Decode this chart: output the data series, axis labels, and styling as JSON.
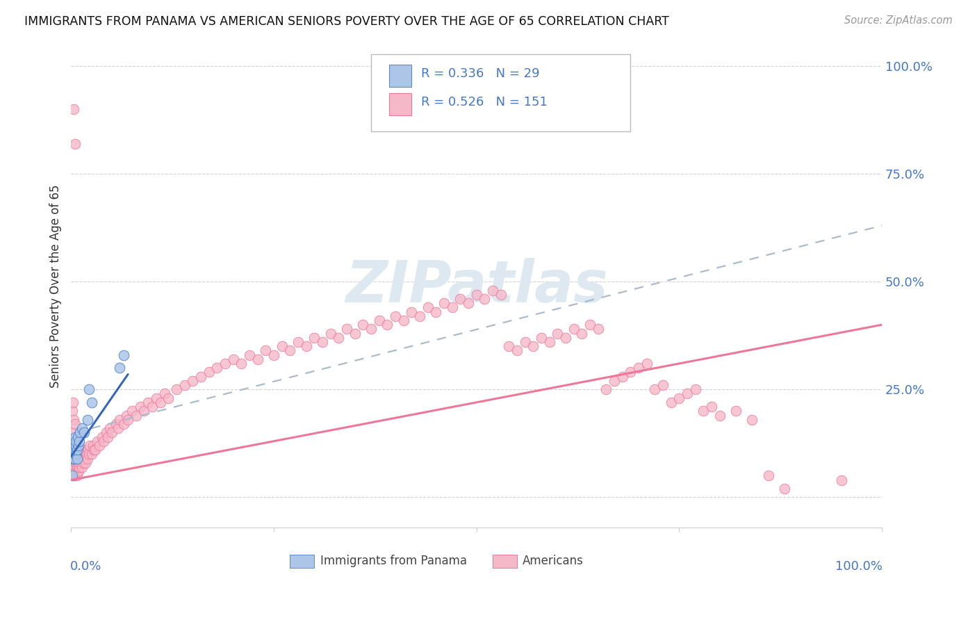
{
  "title": "IMMIGRANTS FROM PANAMA VS AMERICAN SENIORS POVERTY OVER THE AGE OF 65 CORRELATION CHART",
  "source": "Source: ZipAtlas.com",
  "ylabel": "Seniors Poverty Over the Age of 65",
  "legend_label1": "Immigrants from Panama",
  "legend_label2": "Americans",
  "legend_R1": "R = 0.336",
  "legend_N1": "N = 29",
  "legend_R2": "R = 0.526",
  "legend_N2": "N = 151",
  "color_blue_fill": "#adc6e8",
  "color_blue_edge": "#5588cc",
  "color_blue_line": "#3366bb",
  "color_blue_dash": "#aabbcc",
  "color_pink_fill": "#f5b8c8",
  "color_pink_edge": "#ee7799",
  "color_pink_line": "#ee7799",
  "color_axis_label": "#4477cc",
  "color_grid": "#cccccc",
  "watermark_color": "#dde8f0",
  "blue_x": [
    0.001,
    0.002,
    0.002,
    0.003,
    0.003,
    0.003,
    0.004,
    0.004,
    0.004,
    0.005,
    0.005,
    0.005,
    0.005,
    0.006,
    0.006,
    0.006,
    0.007,
    0.007,
    0.008,
    0.009,
    0.01,
    0.011,
    0.013,
    0.016,
    0.02,
    0.022,
    0.025,
    0.06,
    0.065
  ],
  "blue_y": [
    0.05,
    0.09,
    0.11,
    0.1,
    0.12,
    0.13,
    0.09,
    0.11,
    0.13,
    0.1,
    0.11,
    0.12,
    0.14,
    0.1,
    0.12,
    0.13,
    0.09,
    0.11,
    0.14,
    0.12,
    0.13,
    0.15,
    0.16,
    0.15,
    0.18,
    0.25,
    0.22,
    0.3,
    0.33
  ],
  "pink_x": [
    0.001,
    0.001,
    0.002,
    0.002,
    0.002,
    0.003,
    0.003,
    0.003,
    0.003,
    0.004,
    0.004,
    0.004,
    0.004,
    0.005,
    0.005,
    0.005,
    0.005,
    0.005,
    0.006,
    0.006,
    0.006,
    0.006,
    0.007,
    0.007,
    0.007,
    0.008,
    0.008,
    0.008,
    0.009,
    0.009,
    0.01,
    0.01,
    0.011,
    0.012,
    0.013,
    0.014,
    0.015,
    0.016,
    0.017,
    0.018,
    0.019,
    0.02,
    0.021,
    0.022,
    0.023,
    0.025,
    0.027,
    0.028,
    0.03,
    0.032,
    0.035,
    0.038,
    0.04,
    0.043,
    0.045,
    0.048,
    0.05,
    0.055,
    0.058,
    0.06,
    0.065,
    0.068,
    0.07,
    0.075,
    0.08,
    0.085,
    0.09,
    0.095,
    0.1,
    0.105,
    0.11,
    0.115,
    0.12,
    0.13,
    0.14,
    0.15,
    0.16,
    0.17,
    0.18,
    0.19,
    0.2,
    0.21,
    0.22,
    0.23,
    0.24,
    0.25,
    0.26,
    0.27,
    0.28,
    0.29,
    0.3,
    0.31,
    0.32,
    0.33,
    0.34,
    0.35,
    0.36,
    0.37,
    0.38,
    0.39,
    0.4,
    0.41,
    0.42,
    0.43,
    0.44,
    0.45,
    0.46,
    0.47,
    0.48,
    0.49,
    0.5,
    0.51,
    0.52,
    0.53,
    0.54,
    0.55,
    0.56,
    0.57,
    0.58,
    0.59,
    0.6,
    0.61,
    0.62,
    0.63,
    0.64,
    0.65,
    0.66,
    0.67,
    0.68,
    0.69,
    0.7,
    0.71,
    0.72,
    0.73,
    0.74,
    0.75,
    0.76,
    0.77,
    0.78,
    0.79,
    0.8,
    0.82,
    0.84,
    0.86,
    0.88,
    0.95,
    0.005,
    0.003
  ],
  "pink_y": [
    0.06,
    0.2,
    0.05,
    0.08,
    0.22,
    0.06,
    0.08,
    0.1,
    0.18,
    0.05,
    0.07,
    0.09,
    0.15,
    0.05,
    0.07,
    0.09,
    0.12,
    0.17,
    0.06,
    0.08,
    0.1,
    0.13,
    0.05,
    0.07,
    0.11,
    0.06,
    0.08,
    0.12,
    0.06,
    0.1,
    0.07,
    0.11,
    0.08,
    0.09,
    0.07,
    0.1,
    0.08,
    0.09,
    0.11,
    0.08,
    0.1,
    0.09,
    0.11,
    0.1,
    0.12,
    0.1,
    0.12,
    0.11,
    0.11,
    0.13,
    0.12,
    0.14,
    0.13,
    0.15,
    0.14,
    0.16,
    0.15,
    0.17,
    0.16,
    0.18,
    0.17,
    0.19,
    0.18,
    0.2,
    0.19,
    0.21,
    0.2,
    0.22,
    0.21,
    0.23,
    0.22,
    0.24,
    0.23,
    0.25,
    0.26,
    0.27,
    0.28,
    0.29,
    0.3,
    0.31,
    0.32,
    0.31,
    0.33,
    0.32,
    0.34,
    0.33,
    0.35,
    0.34,
    0.36,
    0.35,
    0.37,
    0.36,
    0.38,
    0.37,
    0.39,
    0.38,
    0.4,
    0.39,
    0.41,
    0.4,
    0.42,
    0.41,
    0.43,
    0.42,
    0.44,
    0.43,
    0.45,
    0.44,
    0.46,
    0.45,
    0.47,
    0.46,
    0.48,
    0.47,
    0.35,
    0.34,
    0.36,
    0.35,
    0.37,
    0.36,
    0.38,
    0.37,
    0.39,
    0.38,
    0.4,
    0.39,
    0.25,
    0.27,
    0.28,
    0.29,
    0.3,
    0.31,
    0.25,
    0.26,
    0.22,
    0.23,
    0.24,
    0.25,
    0.2,
    0.21,
    0.19,
    0.2,
    0.18,
    0.05,
    0.02,
    0.04,
    0.82,
    0.9
  ],
  "blue_line_x": [
    0.0,
    0.07
  ],
  "blue_line_y": [
    0.095,
    0.285
  ],
  "pink_line_x": [
    0.0,
    1.0
  ],
  "pink_line_y": [
    0.04,
    0.4
  ],
  "dash_line_x": [
    0.025,
    1.0
  ],
  "dash_line_y": [
    0.16,
    0.63
  ],
  "xlim": [
    0.0,
    1.0
  ],
  "ylim": [
    -0.07,
    1.05
  ],
  "yticks": [
    0.0,
    0.25,
    0.5,
    0.75,
    1.0
  ],
  "ytick_labels": [
    "",
    "25.0%",
    "50.0%",
    "75.0%",
    "100.0%"
  ],
  "xtick_labels_blue": [
    "0.0%",
    "100.0%"
  ]
}
